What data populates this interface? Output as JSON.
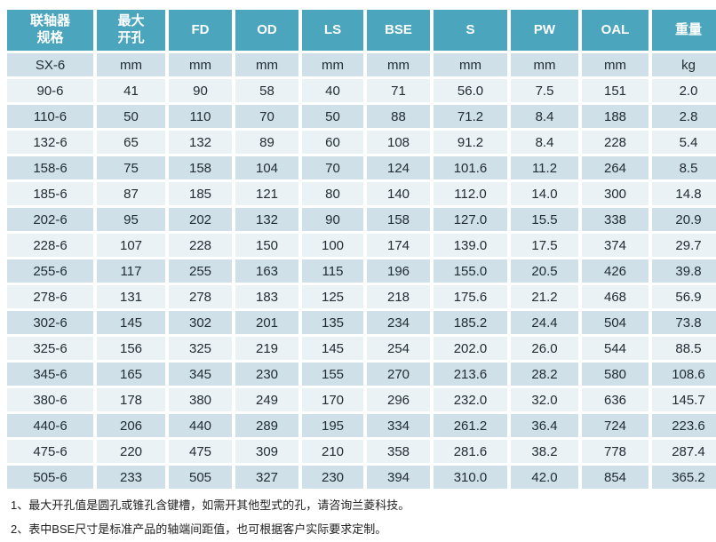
{
  "table": {
    "header": [
      "联轴器\n规格",
      "最大\n开孔",
      "FD",
      "OD",
      "LS",
      "BSE",
      "S",
      "PW",
      "OAL",
      "重量"
    ],
    "units_row": [
      "SX-6",
      "mm",
      "mm",
      "mm",
      "mm",
      "mm",
      "mm",
      "mm",
      "mm",
      "kg"
    ],
    "rows": [
      [
        "90-6",
        "41",
        "90",
        "58",
        "40",
        "71",
        "56.0",
        "7.5",
        "151",
        "2.0"
      ],
      [
        "110-6",
        "50",
        "110",
        "70",
        "50",
        "88",
        "71.2",
        "8.4",
        "188",
        "2.8"
      ],
      [
        "132-6",
        "65",
        "132",
        "89",
        "60",
        "108",
        "91.2",
        "8.4",
        "228",
        "5.4"
      ],
      [
        "158-6",
        "75",
        "158",
        "104",
        "70",
        "124",
        "101.6",
        "11.2",
        "264",
        "8.5"
      ],
      [
        "185-6",
        "87",
        "185",
        "121",
        "80",
        "140",
        "112.0",
        "14.0",
        "300",
        "14.8"
      ],
      [
        "202-6",
        "95",
        "202",
        "132",
        "90",
        "158",
        "127.0",
        "15.5",
        "338",
        "20.9"
      ],
      [
        "228-6",
        "107",
        "228",
        "150",
        "100",
        "174",
        "139.0",
        "17.5",
        "374",
        "29.7"
      ],
      [
        "255-6",
        "117",
        "255",
        "163",
        "115",
        "196",
        "155.0",
        "20.5",
        "426",
        "39.8"
      ],
      [
        "278-6",
        "131",
        "278",
        "183",
        "125",
        "218",
        "175.6",
        "21.2",
        "468",
        "56.9"
      ],
      [
        "302-6",
        "145",
        "302",
        "201",
        "135",
        "234",
        "185.2",
        "24.4",
        "504",
        "73.8"
      ],
      [
        "325-6",
        "156",
        "325",
        "219",
        "145",
        "254",
        "202.0",
        "26.0",
        "544",
        "88.5"
      ],
      [
        "345-6",
        "165",
        "345",
        "230",
        "155",
        "270",
        "213.6",
        "28.2",
        "580",
        "108.6"
      ],
      [
        "380-6",
        "178",
        "380",
        "249",
        "170",
        "296",
        "232.0",
        "32.0",
        "636",
        "145.7"
      ],
      [
        "440-6",
        "206",
        "440",
        "289",
        "195",
        "334",
        "261.2",
        "36.4",
        "724",
        "223.6"
      ],
      [
        "475-6",
        "220",
        "475",
        "309",
        "210",
        "358",
        "281.6",
        "38.2",
        "778",
        "287.4"
      ],
      [
        "505-6",
        "233",
        "505",
        "327",
        "230",
        "394",
        "310.0",
        "42.0",
        "854",
        "365.2"
      ]
    ]
  },
  "notes": [
    "1、最大开孔值是圆孔或锥孔含键槽，如需开其他型式的孔，请咨询兰菱科技。",
    "2、表中BSE尺寸是标准产品的轴端间距值，也可根据客户实际要求定制。"
  ],
  "colors": {
    "header_bg": "#4AA5BD",
    "row_dark": "#D0E0E9",
    "row_light": "#EAF2F6",
    "text": "#212D33"
  }
}
